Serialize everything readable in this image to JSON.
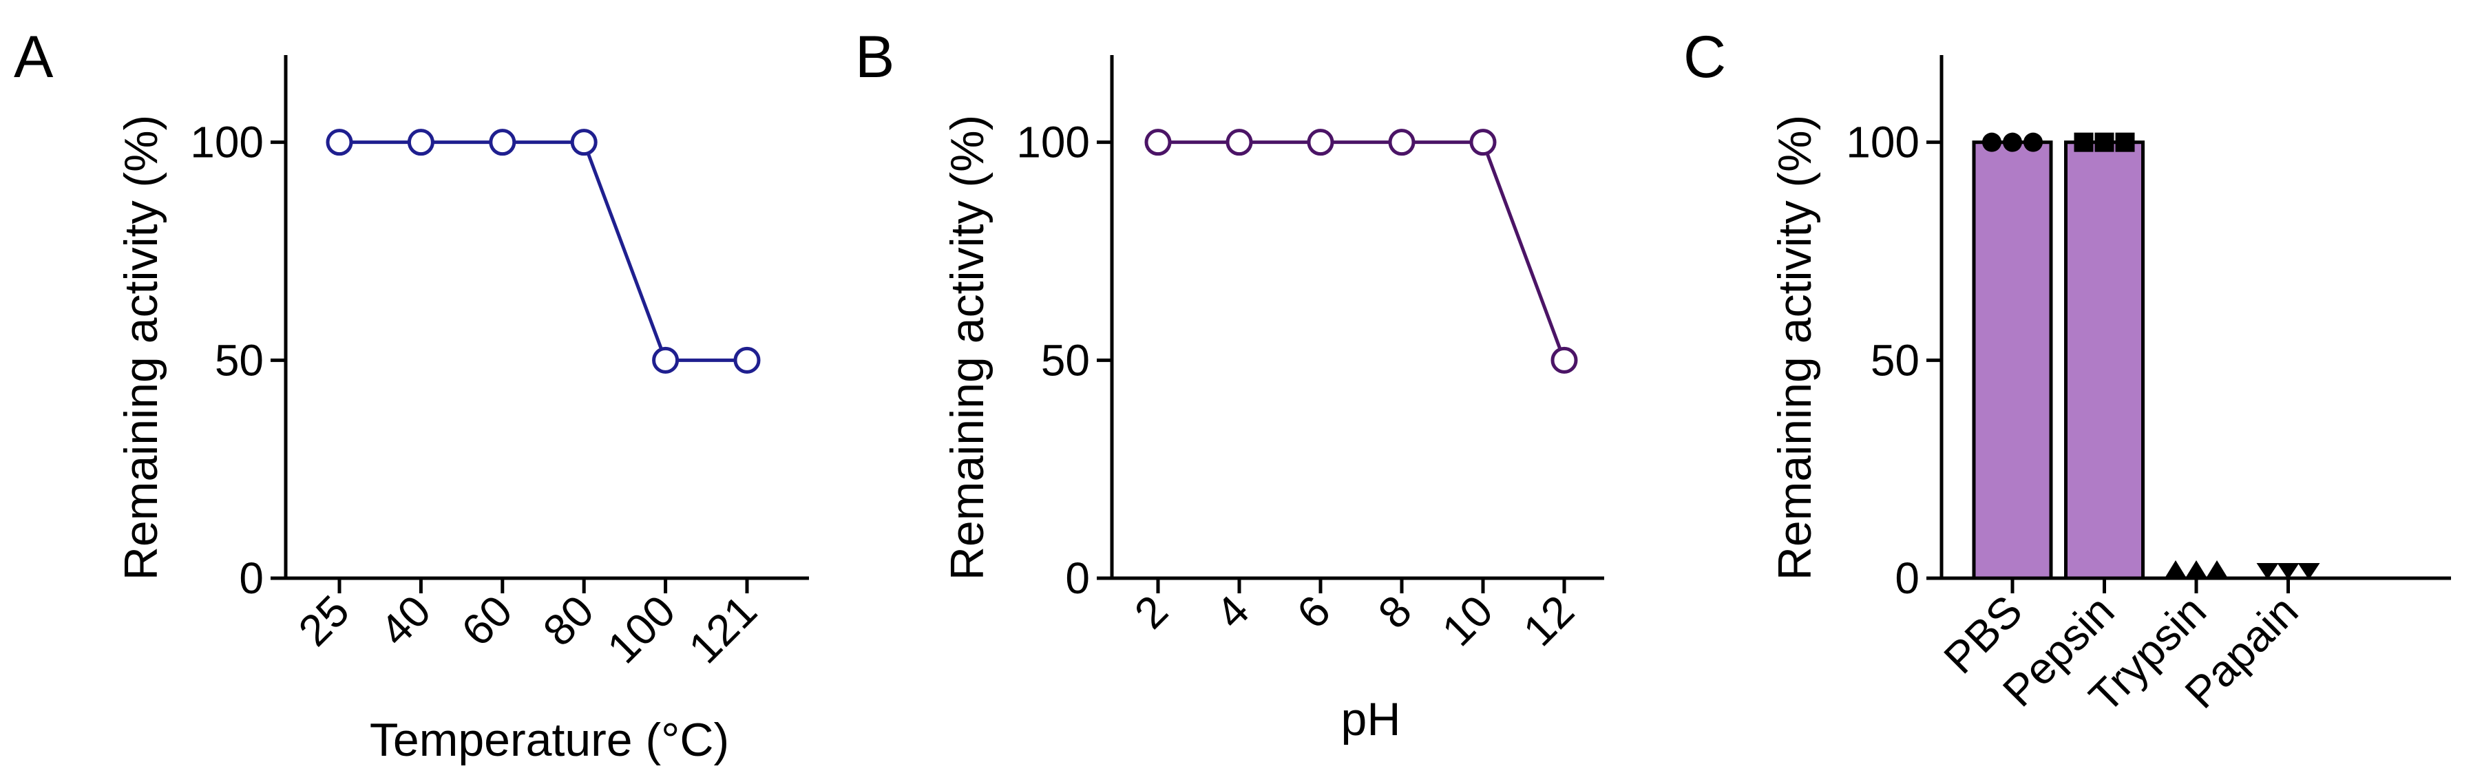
{
  "figure": {
    "panels": [
      {
        "letter": "A"
      },
      {
        "letter": "B"
      },
      {
        "letter": "C"
      }
    ]
  },
  "chart_data": [
    {
      "type": "line",
      "panel": "A",
      "title": "",
      "xlabel": "Temperature (°C)",
      "ylabel": "Remaining activity (%)",
      "categories": [
        "25",
        "40",
        "60",
        "80",
        "100",
        "121"
      ],
      "series": [
        {
          "values": [
            100,
            100,
            100,
            100,
            50,
            50
          ],
          "color": "#1f1f8f",
          "marker": "open-circle"
        }
      ],
      "ylim": [
        0,
        120
      ],
      "yticks": [
        0,
        50,
        100
      ],
      "grid": false,
      "legend": "none"
    },
    {
      "type": "line",
      "panel": "B",
      "title": "",
      "xlabel": "pH",
      "ylabel": "Remaining activity (%)",
      "categories": [
        "2",
        "4",
        "6",
        "8",
        "10",
        "12"
      ],
      "series": [
        {
          "values": [
            100,
            100,
            100,
            100,
            100,
            50
          ],
          "color": "#4b1466",
          "marker": "open-circle"
        }
      ],
      "ylim": [
        0,
        120
      ],
      "yticks": [
        0,
        50,
        100
      ],
      "grid": false,
      "legend": "none"
    },
    {
      "type": "bar",
      "panel": "C",
      "title": "",
      "xlabel": "",
      "ylabel": "Remaining activity (%)",
      "categories": [
        "PBS",
        "Pepsin",
        "Trypsin",
        "Papain"
      ],
      "values": [
        100,
        100,
        0,
        0
      ],
      "replicates": [
        [
          100,
          100,
          100
        ],
        [
          100,
          100,
          100
        ],
        [
          0,
          0,
          0
        ],
        [
          0,
          0,
          0
        ]
      ],
      "markers": [
        "circle",
        "square",
        "triangle-up",
        "triangle-down"
      ],
      "bar_color": "#b07cc6",
      "ylim": [
        0,
        120
      ],
      "yticks": [
        0,
        50,
        100
      ],
      "grid": false,
      "legend": "none"
    }
  ]
}
